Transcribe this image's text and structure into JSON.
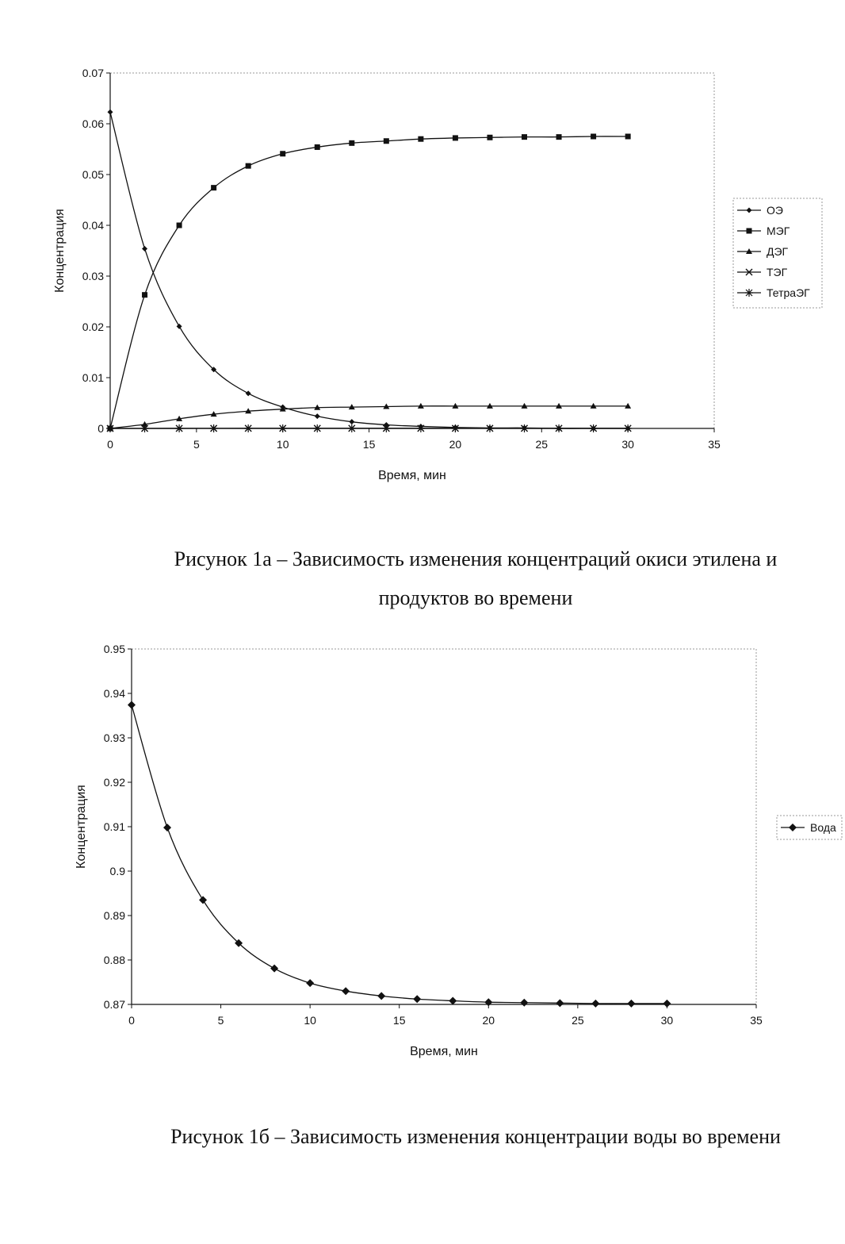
{
  "chart_data": [
    {
      "type": "line",
      "xlabel": "Время, мин",
      "ylabel": "Концентрация",
      "xlim": [
        0,
        35
      ],
      "ylim": [
        0,
        0.07
      ],
      "xticks": [
        "0",
        "5",
        "10",
        "15",
        "20",
        "25",
        "30",
        "35"
      ],
      "yticks": [
        "0",
        "0.01",
        "0.02",
        "0.03",
        "0.04",
        "0.05",
        "0.06",
        "0.07"
      ],
      "grid": false,
      "legend": "right",
      "x": [
        0,
        2,
        4,
        6,
        8,
        10,
        12,
        14,
        16,
        18,
        20,
        22,
        24,
        26,
        28,
        30
      ],
      "series": [
        {
          "name": "ОЭ",
          "marker": "diamond-small",
          "values": [
            0.0623,
            0.0354,
            0.0201,
            0.0116,
            0.0069,
            0.0042,
            0.0024,
            0.0013,
            0.0007,
            0.0004,
            0.0002,
            0.0001,
            0.0001,
            0.0,
            0.0,
            0.0
          ]
        },
        {
          "name": "МЭГ",
          "marker": "square",
          "values": [
            0.0,
            0.0263,
            0.04,
            0.0474,
            0.0517,
            0.0541,
            0.0554,
            0.0562,
            0.0566,
            0.057,
            0.0572,
            0.0573,
            0.0574,
            0.0574,
            0.0575,
            0.0575
          ]
        },
        {
          "name": "ДЭГ",
          "marker": "triangle",
          "values": [
            0.0,
            0.0008,
            0.0019,
            0.0028,
            0.0034,
            0.0038,
            0.0041,
            0.0042,
            0.0043,
            0.0044,
            0.0044,
            0.0044,
            0.0044,
            0.0044,
            0.0044,
            0.0044
          ]
        },
        {
          "name": "ТЭГ",
          "marker": "x",
          "values": [
            0,
            0,
            1e-05,
            2e-05,
            3e-05,
            3e-05,
            3e-05,
            3e-05,
            3e-05,
            3e-05,
            3e-05,
            3e-05,
            3e-05,
            3e-05,
            3e-05,
            3e-05
          ]
        },
        {
          "name": "ТетраЭГ",
          "marker": "star",
          "values": [
            0,
            0,
            0,
            0,
            0,
            0,
            0,
            0,
            0,
            0,
            0,
            0,
            0,
            0,
            0,
            0
          ]
        }
      ]
    },
    {
      "type": "line",
      "xlabel": "Время, мин",
      "ylabel": "Концентрация",
      "xlim": [
        0,
        35
      ],
      "ylim": [
        0.87,
        0.95
      ],
      "xticks": [
        "0",
        "5",
        "10",
        "15",
        "20",
        "25",
        "30",
        "35"
      ],
      "yticks": [
        "0.87",
        "0.88",
        "0.89",
        "0.9",
        "0.91",
        "0.92",
        "0.93",
        "0.94",
        "0.95"
      ],
      "grid": false,
      "legend": "right",
      "x": [
        0,
        2,
        4,
        6,
        8,
        10,
        12,
        14,
        16,
        18,
        20,
        22,
        24,
        26,
        28,
        30
      ],
      "series": [
        {
          "name": "Вода",
          "marker": "diamond",
          "values": [
            0.9374,
            0.9098,
            0.8935,
            0.8838,
            0.8781,
            0.8748,
            0.873,
            0.8719,
            0.8712,
            0.8708,
            0.8705,
            0.8704,
            0.8703,
            0.8702,
            0.8702,
            0.8702
          ]
        }
      ]
    }
  ],
  "captions": {
    "fig1_line1": "Рисунок 1а – Зависимость изменения концентраций окиси этилена и",
    "fig1_line2": "продуктов во времени",
    "fig2": "Рисунок 1б – Зависимость изменения концентрации воды во времени"
  }
}
